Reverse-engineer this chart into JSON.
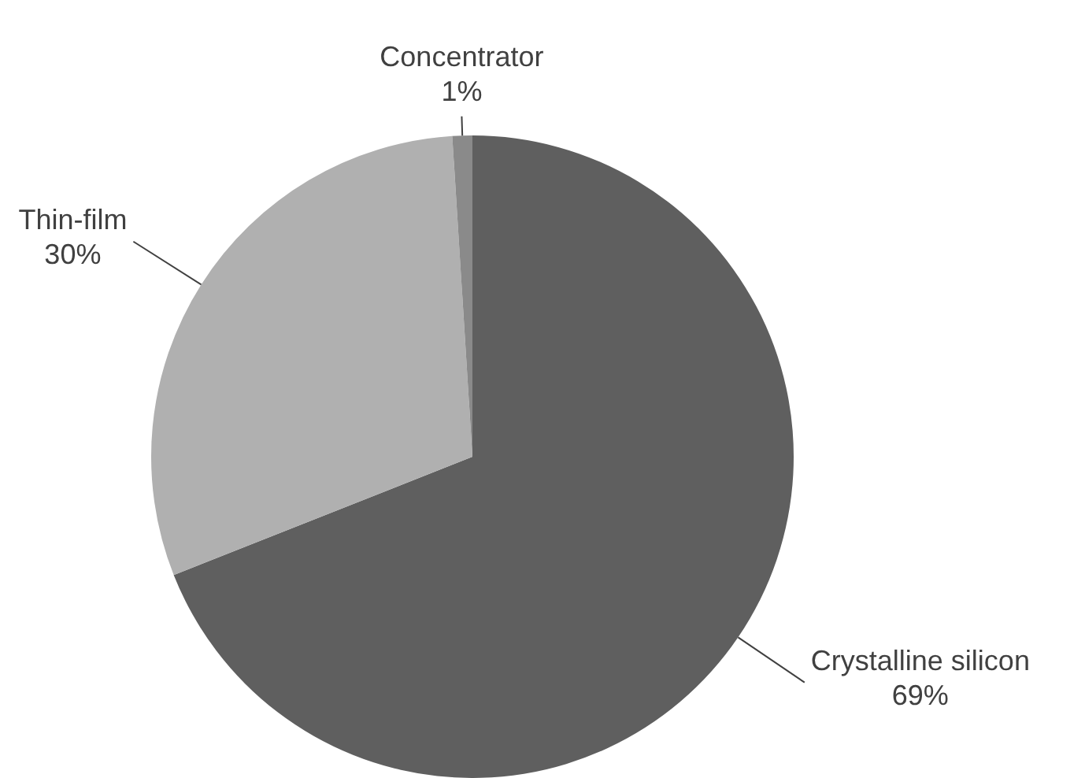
{
  "chart_data": {
    "type": "pie",
    "categories": [
      "Crystalline silicon",
      "Thin-film",
      "Concentrator"
    ],
    "values": [
      69,
      30,
      1
    ],
    "colors": [
      "#5f5f5f",
      "#b0b0b0",
      "#8a8a8a"
    ],
    "value_labels": [
      "69%",
      "30%",
      "1%"
    ]
  }
}
